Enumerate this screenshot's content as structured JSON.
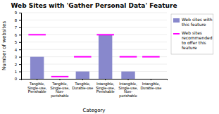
{
  "chart_data": {
    "type": "bar",
    "title": "Web Sites with 'Gather Personal Data' Feature",
    "xlabel": "Category",
    "ylabel": "Number of websites",
    "categories": [
      "Tangible,\nSingle-use,\nPerishable",
      "Tangible,\nSingle-use,\nNon-\nperishable",
      "Tangible,\nDurable-use",
      "Intangible,\nSingle-use,\nPerishable",
      "Intangible,\nSingle-use,\nNon-\nperishable",
      "Intangible,\nDurable-use"
    ],
    "series": [
      {
        "name": "Web sites with\nthis feature",
        "type": "bar",
        "color": "#8888cc",
        "values": [
          3,
          0,
          1,
          6,
          1,
          0
        ]
      },
      {
        "name": "Web sites\nrecommended\nto offer this\nfeature",
        "type": "scatter",
        "marker": "hline",
        "color": "#ff00ff",
        "values": [
          6,
          0.3,
          3,
          6,
          3,
          3
        ]
      }
    ],
    "ylim": [
      0,
      9
    ],
    "yticks": [
      0,
      1,
      2,
      3,
      4,
      5,
      6,
      7,
      8,
      9
    ],
    "grid": true,
    "legend": "right"
  }
}
